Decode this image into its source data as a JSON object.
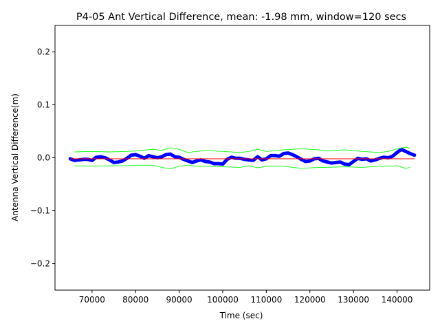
{
  "chart_data": {
    "type": "line",
    "title": "P4-05 Ant Vertical Difference, mean: -1.98 mm, window=120 secs",
    "xlabel": "Time (sec)",
    "ylabel": "Antenna Vertical Difference(m)",
    "xlim": [
      61500,
      147500
    ],
    "ylim": [
      -0.25,
      0.25
    ],
    "x_ticks": [
      70000,
      80000,
      90000,
      100000,
      110000,
      120000,
      130000,
      140000
    ],
    "x_tick_labels": [
      "70000",
      "80000",
      "90000",
      "100000",
      "110000",
      "120000",
      "130000",
      "140000"
    ],
    "y_ticks": [
      -0.2,
      -0.1,
      0.0,
      0.1,
      0.2
    ],
    "y_tick_labels": [
      "−0.2",
      "−0.1",
      "0.0",
      "0.1",
      "0.2"
    ],
    "grid": false,
    "legend": false,
    "series": [
      {
        "role": "data",
        "color": "#0000ff",
        "x": [
          65000,
          66000,
          67000,
          68000,
          69000,
          70000,
          71000,
          72000,
          73000,
          74000,
          75000,
          76000,
          77000,
          78000,
          79000,
          80000,
          81000,
          82000,
          83000,
          84000,
          85000,
          86000,
          87000,
          88000,
          89000,
          90000,
          91000,
          92000,
          93000,
          94000,
          95000,
          96000,
          97000,
          98000,
          99000,
          100000,
          101000,
          102000,
          103000,
          104000,
          105000,
          106000,
          107000,
          108000,
          109000,
          110000,
          111000,
          112000,
          113000,
          114000,
          115000,
          116000,
          117000,
          118000,
          119000,
          120000,
          121000,
          122000,
          123000,
          124000,
          125000,
          126000,
          127000,
          128000,
          129000,
          130000,
          131000,
          132000,
          133000,
          134000,
          135000,
          136000,
          137000,
          138000,
          139000,
          140000,
          141000,
          142000,
          143000,
          144000
        ],
        "y": [
          -0.002,
          -0.005,
          -0.004,
          -0.003,
          -0.003,
          -0.005,
          0.001,
          0.002,
          0.0,
          -0.004,
          -0.009,
          -0.008,
          -0.006,
          -0.001,
          0.005,
          0.006,
          0.003,
          -0.001,
          0.004,
          0.002,
          0.0,
          0.002,
          0.006,
          0.007,
          0.002,
          0.001,
          -0.003,
          -0.006,
          -0.009,
          -0.006,
          -0.004,
          -0.007,
          -0.008,
          -0.011,
          -0.011,
          -0.012,
          -0.003,
          0.001,
          -0.001,
          -0.001,
          -0.003,
          -0.004,
          -0.005,
          0.002,
          -0.004,
          -0.002,
          0.004,
          0.004,
          0.003,
          0.008,
          0.009,
          0.006,
          0.002,
          -0.003,
          -0.007,
          -0.006,
          -0.002,
          -0.001,
          -0.006,
          -0.008,
          -0.01,
          -0.009,
          -0.008,
          -0.012,
          -0.013,
          -0.007,
          -0.001,
          -0.003,
          -0.002,
          -0.006,
          -0.004,
          -0.001,
          0.001,
          0.0,
          0.003,
          0.01,
          0.016,
          0.012,
          0.008,
          0.005
        ]
      },
      {
        "role": "upper-band",
        "color": "#00ff00",
        "x": [
          66000,
          70000,
          74000,
          78000,
          80000,
          84000,
          86000,
          88000,
          90000,
          92000,
          94000,
          96000,
          100000,
          104000,
          106000,
          108000,
          110000,
          114000,
          118000,
          122000,
          124000,
          128000,
          132000,
          136000,
          138000,
          140000,
          142000,
          143000
        ],
        "y": [
          0.011,
          0.012,
          0.011,
          0.012,
          0.013,
          0.016,
          0.014,
          0.019,
          0.016,
          0.01,
          0.012,
          0.014,
          0.012,
          0.01,
          0.012,
          0.016,
          0.012,
          0.015,
          0.017,
          0.015,
          0.013,
          0.015,
          0.012,
          0.01,
          0.012,
          0.017,
          0.02,
          0.018
        ]
      },
      {
        "role": "lower-band",
        "color": "#00ff00",
        "x": [
          66000,
          70000,
          74000,
          78000,
          80000,
          84000,
          86000,
          88000,
          90000,
          92000,
          94000,
          96000,
          100000,
          104000,
          106000,
          108000,
          110000,
          114000,
          118000,
          122000,
          124000,
          128000,
          132000,
          136000,
          138000,
          140000,
          142000,
          143000
        ],
        "y": [
          -0.015,
          -0.016,
          -0.015,
          -0.015,
          -0.014,
          -0.014,
          -0.018,
          -0.021,
          -0.016,
          -0.014,
          -0.016,
          -0.016,
          -0.017,
          -0.018,
          -0.015,
          -0.019,
          -0.016,
          -0.016,
          -0.02,
          -0.018,
          -0.018,
          -0.017,
          -0.018,
          -0.016,
          -0.016,
          -0.015,
          -0.02,
          -0.018
        ]
      },
      {
        "role": "mean",
        "color": "#ff0000",
        "x": [
          65000,
          144000
        ],
        "y": [
          -0.00198,
          -0.00198
        ]
      }
    ]
  }
}
